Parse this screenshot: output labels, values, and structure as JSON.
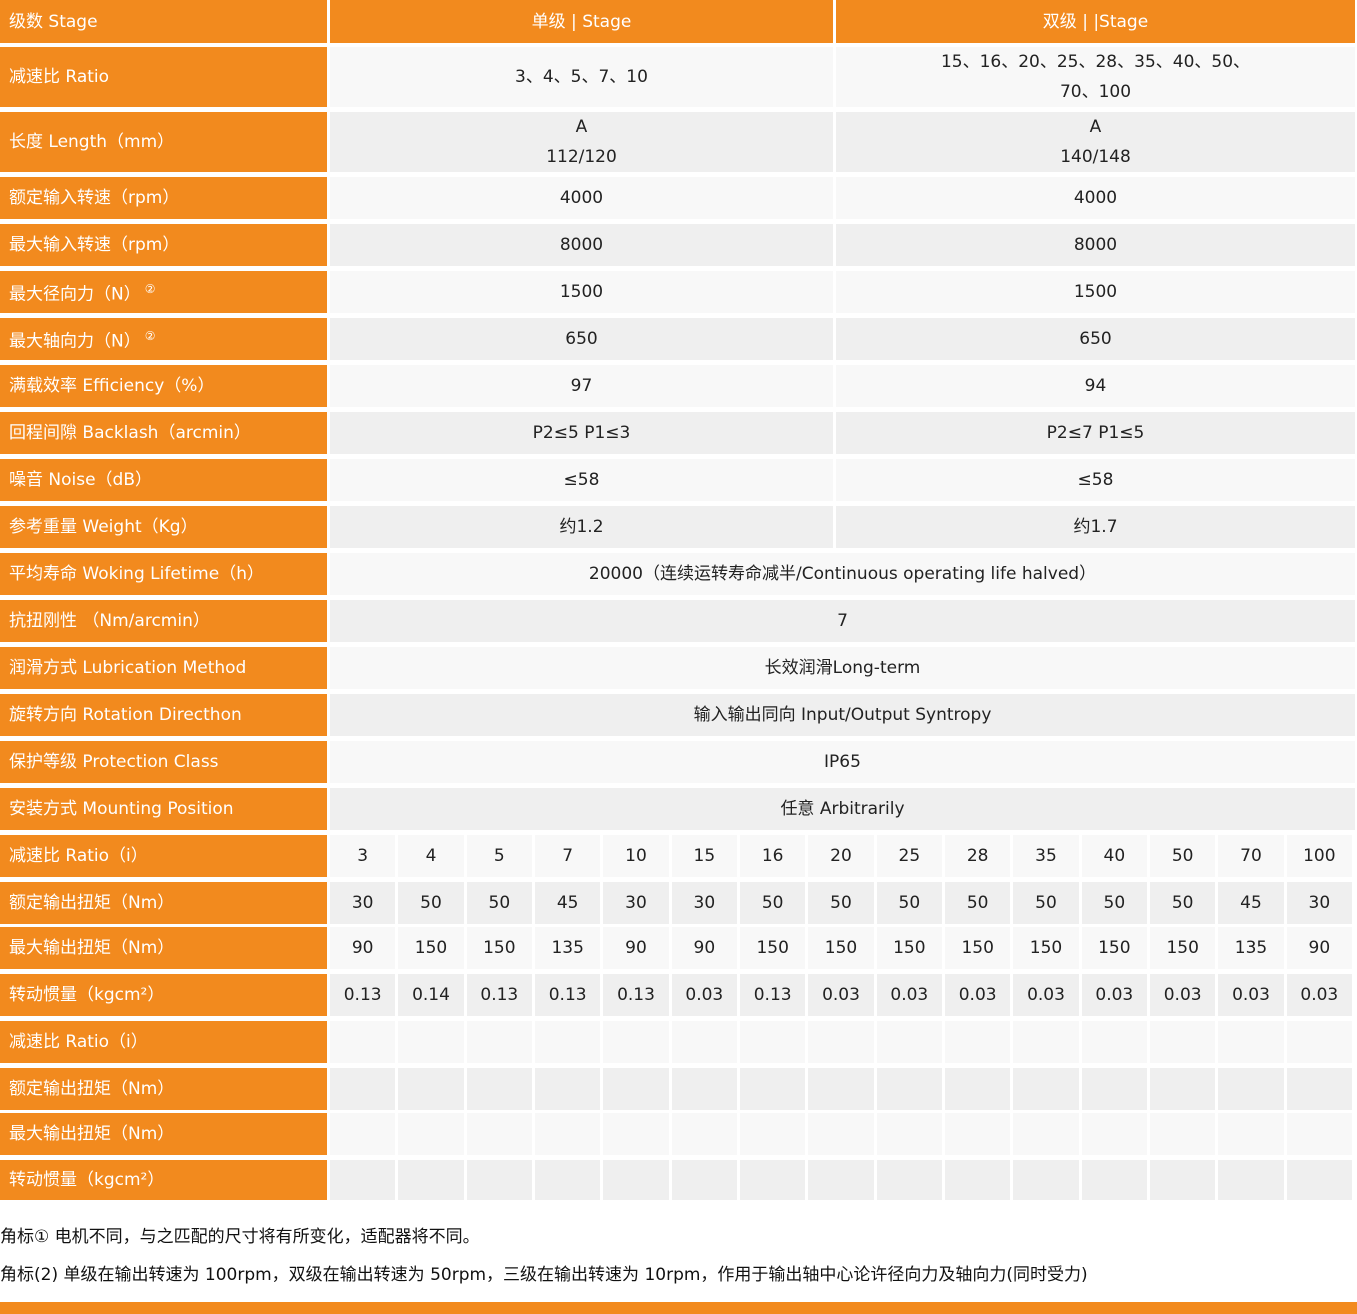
{
  "table": {
    "header": [
      "级数 Stage",
      "单级 | Stage",
      "双级 | |Stage"
    ],
    "spec_rows": [
      {
        "label": "减速比 Ratio",
        "cells": [
          [
            "3、4、5、7、10"
          ],
          [
            "15、16、20、25、28、35、40、50、",
            "70、100"
          ]
        ]
      },
      {
        "label": "长度 Length（mm）",
        "cells": [
          [
            "A",
            "112/120"
          ],
          [
            "A",
            "140/148"
          ]
        ]
      },
      {
        "label": "额定输入转速（rpm）",
        "cells": [
          [
            "4000"
          ],
          [
            "4000"
          ]
        ]
      },
      {
        "label": "最大输入转速（rpm）",
        "cells": [
          [
            "8000"
          ],
          [
            "8000"
          ]
        ]
      },
      {
        "label": "最大径向力（N）",
        "note": "②",
        "cells": [
          [
            "1500"
          ],
          [
            "1500"
          ]
        ]
      },
      {
        "label": "最大轴向力（N）",
        "note": "②",
        "cells": [
          [
            "650"
          ],
          [
            "650"
          ]
        ]
      },
      {
        "label": "满载效率 Efficiency（%）",
        "cells": [
          [
            "97"
          ],
          [
            "94"
          ]
        ]
      },
      {
        "label": "回程间隙 Backlash（arcmin）",
        "cells": [
          [
            "P2≤5  P1≤3"
          ],
          [
            "P2≤7  P1≤5"
          ]
        ]
      },
      {
        "label": "噪音 Noise（dB）",
        "cells": [
          [
            "≤58"
          ],
          [
            "≤58"
          ]
        ]
      },
      {
        "label": "参考重量 Weight（Kg）",
        "cells": [
          [
            "约1.2"
          ],
          [
            "约1.7"
          ]
        ]
      },
      {
        "label": "平均寿命 Woking Lifetime（h）",
        "cells": [
          [
            "20000（连续运转寿命减半/Continuous operating life halved）"
          ]
        ]
      },
      {
        "label": "抗扭刚性 （Nm/arcmin）",
        "cells": [
          [
            "7"
          ]
        ]
      },
      {
        "label": "润滑方式 Lubrication Method",
        "cells": [
          [
            "长效润滑Long-term"
          ]
        ]
      },
      {
        "label": "旋转方向 Rotation Directhon",
        "cells": [
          [
            "输入输出同向 Input/Output Syntropy"
          ]
        ]
      },
      {
        "label": "保护等级 Protection Class",
        "cells": [
          [
            "IP65"
          ]
        ]
      },
      {
        "label": "安装方式 Mounting Position",
        "cells": [
          [
            "任意 Arbitrarily"
          ]
        ]
      }
    ],
    "grid_rows": [
      {
        "label": "减速比 Ratio（i）",
        "values": [
          "3",
          "4",
          "5",
          "7",
          "10",
          "15",
          "16",
          "20",
          "25",
          "28",
          "35",
          "40",
          "50",
          "70",
          "100"
        ]
      },
      {
        "label": "额定输出扭矩（Nm）",
        "values": [
          "30",
          "50",
          "50",
          "45",
          "30",
          "30",
          "50",
          "50",
          "50",
          "50",
          "50",
          "50",
          "50",
          "45",
          "30"
        ]
      },
      {
        "label": "最大输出扭矩（Nm）",
        "values": [
          "90",
          "150",
          "150",
          "135",
          "90",
          "90",
          "150",
          "150",
          "150",
          "150",
          "150",
          "150",
          "150",
          "135",
          "90"
        ]
      },
      {
        "label": "转动惯量（kgcm²）",
        "values": [
          "0.13",
          "0.14",
          "0.13",
          "0.13",
          "0.13",
          "0.03",
          "0.13",
          "0.03",
          "0.03",
          "0.03",
          "0.03",
          "0.03",
          "0.03",
          "0.03",
          "0.03"
        ]
      },
      {
        "label": "减速比 Ratio（i）"
      },
      {
        "label": "额定输出扭矩（Nm）"
      },
      {
        "label": "最大输出扭矩（Nm）"
      },
      {
        "label": "转动惯量（kgcm²）"
      }
    ]
  },
  "footnotes": [
    "角标① 电机不同，与之匹配的尺寸将有所变化，适配器将不同。",
    "角标(2) 单级在输出转速为 100rpm，双级在输出转速为 50rpm，三级在输出转速为 10rpm，作用于输出轴中心论许径向力及轴向力(同时受力)"
  ]
}
